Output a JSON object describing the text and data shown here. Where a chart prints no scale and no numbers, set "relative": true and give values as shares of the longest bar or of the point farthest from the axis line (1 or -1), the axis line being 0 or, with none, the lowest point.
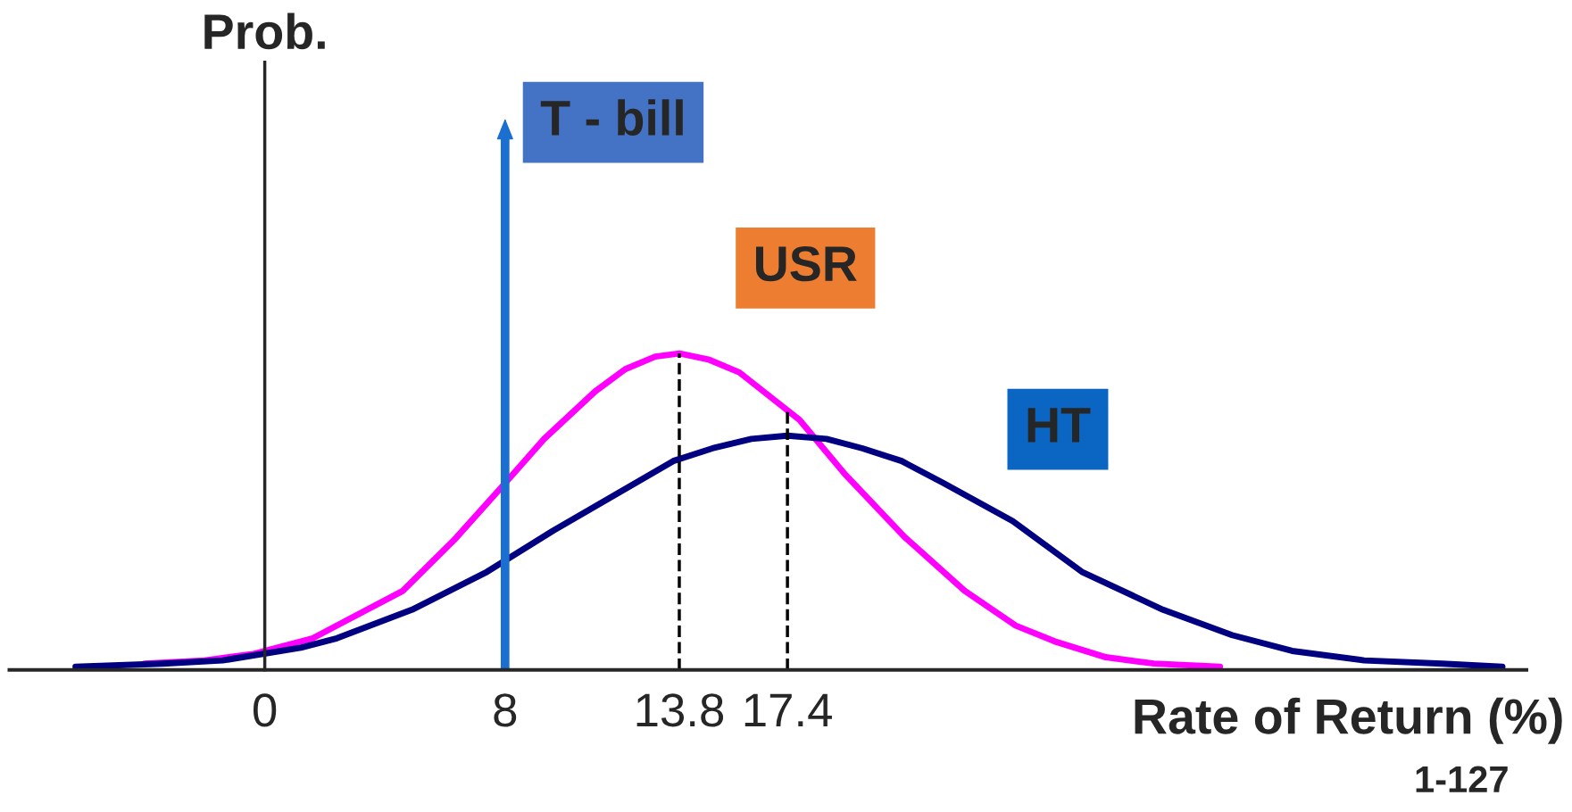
{
  "chart_data": {
    "type": "line",
    "relative": true,
    "xlabel": "Rate of Return (%)",
    "xlim": [
      -8.5,
      42
    ],
    "xticks": [
      0,
      8,
      13.8,
      17.4
    ],
    "grid": false,
    "legend": false,
    "marker": "none",
    "line_style": "solid",
    "series": [
      {
        "name": "USR",
        "color": "#ff00ff",
        "x": [
          -4.0,
          -2.0,
          -0.4,
          1.6,
          2.6,
          4.6,
          6.3,
          8.0,
          9.3,
          11.0,
          12.0,
          13.0,
          13.8,
          14.8,
          15.8,
          16.6,
          17.8,
          19.3,
          21.3,
          23.3,
          25.0,
          26.3,
          28.0,
          29.6,
          31.8
        ],
        "values": [
          0.02,
          0.03,
          0.05,
          0.1,
          0.15,
          0.25,
          0.41,
          0.59,
          0.73,
          0.88,
          0.95,
          0.99,
          1,
          0.98,
          0.94,
          0.88,
          0.79,
          0.62,
          0.42,
          0.25,
          0.14,
          0.09,
          0.04,
          0.02,
          0.01
        ]
      },
      {
        "name": "HT",
        "color": "#000080",
        "x": [
          -6.3,
          -3.4,
          -1.4,
          1.2,
          2.4,
          4.9,
          7.4,
          9.6,
          11.6,
          13.6,
          14.9,
          16.2,
          17.4,
          18.7,
          19.9,
          21.2,
          22.6,
          24.9,
          27.2,
          29.9,
          32.2,
          34.2,
          36.6,
          39.2,
          41.2
        ],
        "values": [
          0.01,
          0.02,
          0.03,
          0.07,
          0.1,
          0.19,
          0.31,
          0.44,
          0.55,
          0.66,
          0.7,
          0.73,
          0.74,
          0.73,
          0.7,
          0.66,
          0.59,
          0.47,
          0.31,
          0.19,
          0.11,
          0.06,
          0.03,
          0.02,
          0.01
        ]
      }
    ],
    "ref_lines": [
      {
        "axis": "x",
        "value": 8,
        "label": "T - bill",
        "color": "#1a6fd0",
        "line_style": "solid"
      },
      {
        "axis": "x",
        "value": 13.8,
        "color": "#000000",
        "line_style": "dashed"
      },
      {
        "axis": "x",
        "value": 17.4,
        "color": "#000000",
        "line_style": "dashed"
      }
    ],
    "annotations": [
      "Prob.",
      "1-127"
    ]
  }
}
